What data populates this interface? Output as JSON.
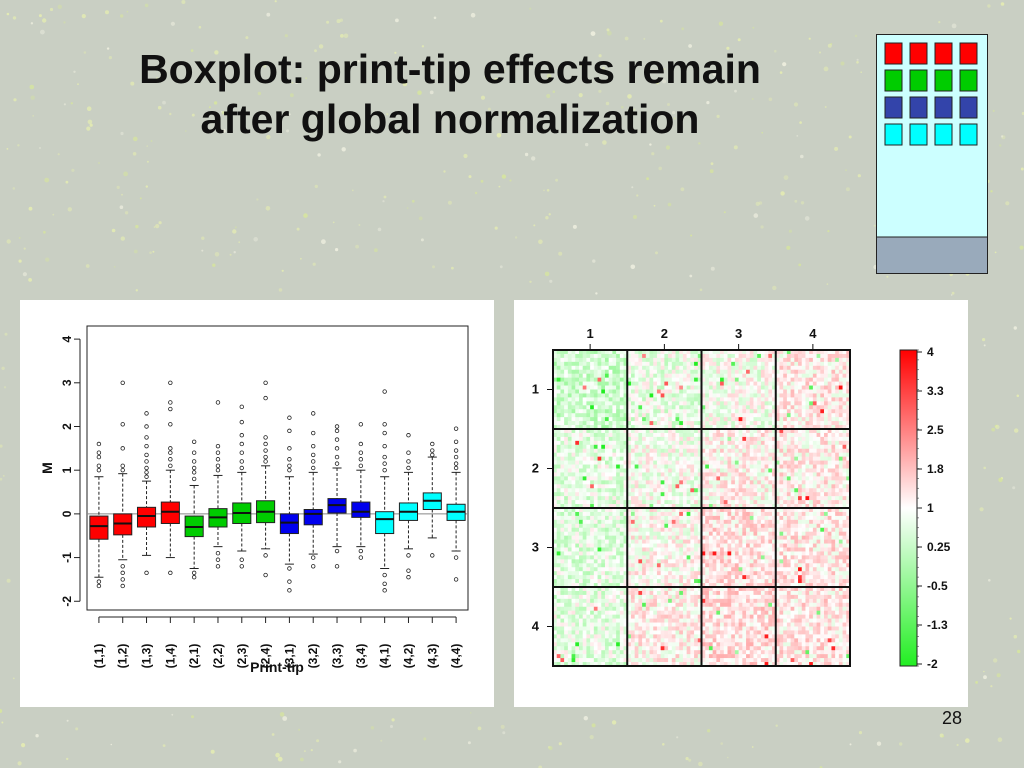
{
  "slide": {
    "title_line1": "Boxplot: print-tip effects remain",
    "title_line2": "after global normalization",
    "page_number": "28"
  },
  "colors": {
    "red": "#ff0000",
    "green": "#00cc00",
    "blue": "#0000ee",
    "cyan": "#00ffff",
    "diagram_navy": "#3344aa",
    "diagram_base": "#99aabb",
    "diagram_bg": "#ccffff"
  },
  "layout_diagram": {
    "rows": [
      {
        "color": "red"
      },
      {
        "color": "green"
      },
      {
        "color": "diagram_navy"
      },
      {
        "color": "cyan"
      }
    ],
    "columns_per_row": 4
  },
  "chart_data": [
    {
      "type": "box",
      "title": "",
      "xlabel": "Print-tip",
      "ylabel": "M",
      "ylim": [
        -2.2,
        4.3
      ],
      "yticks": [
        -2,
        -1,
        0,
        1,
        2,
        3,
        4
      ],
      "reference_line": 0,
      "categories": [
        "(1,1)",
        "(1,2)",
        "(1,3)",
        "(1,4)",
        "(2,1)",
        "(2,2)",
        "(2,3)",
        "(2,4)",
        "(3,1)",
        "(3,2)",
        "(3,3)",
        "(3,4)",
        "(4,1)",
        "(4,2)",
        "(4,3)",
        "(4,4)"
      ],
      "box_colors": [
        "red",
        "red",
        "red",
        "red",
        "green",
        "green",
        "green",
        "green",
        "blue",
        "blue",
        "blue",
        "blue",
        "cyan",
        "cyan",
        "cyan",
        "cyan"
      ],
      "series": [
        {
          "whisker_low": -1.45,
          "q1": -0.58,
          "median": -0.28,
          "q3": -0.05,
          "whisker_high": 0.85,
          "outliers": [
            -1.55,
            -1.65,
            1.0,
            1.1,
            1.3,
            1.4,
            1.6
          ]
        },
        {
          "whisker_low": -1.05,
          "q1": -0.48,
          "median": -0.22,
          "q3": 0.0,
          "whisker_high": 0.92,
          "outliers": [
            -1.2,
            -1.35,
            -1.5,
            -1.65,
            1.0,
            1.1,
            1.5,
            2.05,
            3.0
          ]
        },
        {
          "whisker_low": -0.95,
          "q1": -0.3,
          "median": -0.05,
          "q3": 0.15,
          "whisker_high": 0.75,
          "outliers": [
            -1.35,
            0.85,
            0.95,
            1.05,
            1.2,
            1.35,
            1.55,
            1.75,
            2.0,
            2.3
          ]
        },
        {
          "whisker_low": -1.0,
          "q1": -0.22,
          "median": 0.05,
          "q3": 0.27,
          "whisker_high": 1.0,
          "outliers": [
            -1.35,
            1.1,
            1.25,
            1.4,
            1.5,
            2.05,
            2.4,
            2.55,
            3.0
          ]
        },
        {
          "whisker_low": -1.25,
          "q1": -0.52,
          "median": -0.3,
          "q3": -0.05,
          "whisker_high": 0.65,
          "outliers": [
            -1.35,
            -1.45,
            0.8,
            0.95,
            1.05,
            1.2,
            1.4,
            1.65
          ]
        },
        {
          "whisker_low": -0.75,
          "q1": -0.3,
          "median": -0.08,
          "q3": 0.12,
          "whisker_high": 0.88,
          "outliers": [
            -0.9,
            -1.05,
            -1.2,
            1.0,
            1.1,
            1.25,
            1.4,
            1.55,
            2.55
          ]
        },
        {
          "whisker_low": -0.85,
          "q1": -0.22,
          "median": 0.02,
          "q3": 0.25,
          "whisker_high": 0.95,
          "outliers": [
            -1.05,
            -1.2,
            1.05,
            1.2,
            1.4,
            1.6,
            1.8,
            2.1,
            2.45
          ]
        },
        {
          "whisker_low": -0.8,
          "q1": -0.2,
          "median": 0.05,
          "q3": 0.3,
          "whisker_high": 1.1,
          "outliers": [
            -0.95,
            -1.4,
            1.2,
            1.3,
            1.45,
            1.6,
            1.75,
            2.65,
            3.0
          ]
        },
        {
          "whisker_low": -1.15,
          "q1": -0.45,
          "median": -0.2,
          "q3": 0.0,
          "whisker_high": 0.85,
          "outliers": [
            -1.25,
            -1.55,
            -1.75,
            1.0,
            1.1,
            1.25,
            1.5,
            1.9,
            2.2
          ]
        },
        {
          "whisker_low": -0.92,
          "q1": -0.25,
          "median": 0.0,
          "q3": 0.1,
          "whisker_high": 0.95,
          "outliers": [
            -1.0,
            -1.2,
            1.05,
            1.2,
            1.35,
            1.55,
            1.85,
            2.3
          ]
        },
        {
          "whisker_low": -0.75,
          "q1": 0.02,
          "median": 0.2,
          "q3": 0.35,
          "whisker_high": 1.05,
          "outliers": [
            -0.85,
            -1.2,
            1.15,
            1.3,
            1.5,
            1.7,
            1.9,
            2.0
          ]
        },
        {
          "whisker_low": -0.75,
          "q1": -0.08,
          "median": 0.05,
          "q3": 0.27,
          "whisker_high": 1.0,
          "outliers": [
            -0.85,
            -1.0,
            1.1,
            1.25,
            1.4,
            1.6,
            2.05
          ]
        },
        {
          "whisker_low": -1.25,
          "q1": -0.45,
          "median": -0.12,
          "q3": 0.05,
          "whisker_high": 0.85,
          "outliers": [
            -1.4,
            -1.6,
            -1.75,
            1.0,
            1.15,
            1.3,
            1.55,
            1.85,
            2.05,
            2.8
          ]
        },
        {
          "whisker_low": -0.8,
          "q1": -0.15,
          "median": 0.05,
          "q3": 0.25,
          "whisker_high": 0.95,
          "outliers": [
            -0.95,
            -1.3,
            -1.45,
            1.05,
            1.2,
            1.4,
            1.8
          ]
        },
        {
          "whisker_low": -0.55,
          "q1": 0.1,
          "median": 0.3,
          "q3": 0.48,
          "whisker_high": 1.3,
          "outliers": [
            -0.95,
            1.35,
            1.45,
            1.6
          ]
        },
        {
          "whisker_low": -0.85,
          "q1": -0.15,
          "median": 0.05,
          "q3": 0.22,
          "whisker_high": 0.95,
          "outliers": [
            -1.0,
            -1.5,
            1.05,
            1.15,
            1.3,
            1.45,
            1.65,
            1.95
          ]
        }
      ]
    },
    {
      "type": "heatmap",
      "title": "",
      "column_labels": [
        "1",
        "2",
        "3",
        "4"
      ],
      "row_labels": [
        "1",
        "2",
        "3",
        "4"
      ],
      "grid": "4x4 blocks of printed spots",
      "block_mean_tint": [
        [
          -0.6,
          -0.25,
          -0.1,
          0.25
        ],
        [
          -0.3,
          -0.1,
          0.15,
          0.2
        ],
        [
          -0.35,
          0.05,
          0.35,
          0.3
        ],
        [
          -0.3,
          0.15,
          0.4,
          0.3
        ]
      ],
      "colorbar": {
        "labels": [
          "4",
          "3.3",
          "2.5",
          "1.8",
          "1",
          "0.25",
          "-0.5",
          "-1.3",
          "-2"
        ],
        "high_color": "red",
        "mid_color": "#ffffff",
        "low_color": "#22ee22"
      }
    }
  ]
}
